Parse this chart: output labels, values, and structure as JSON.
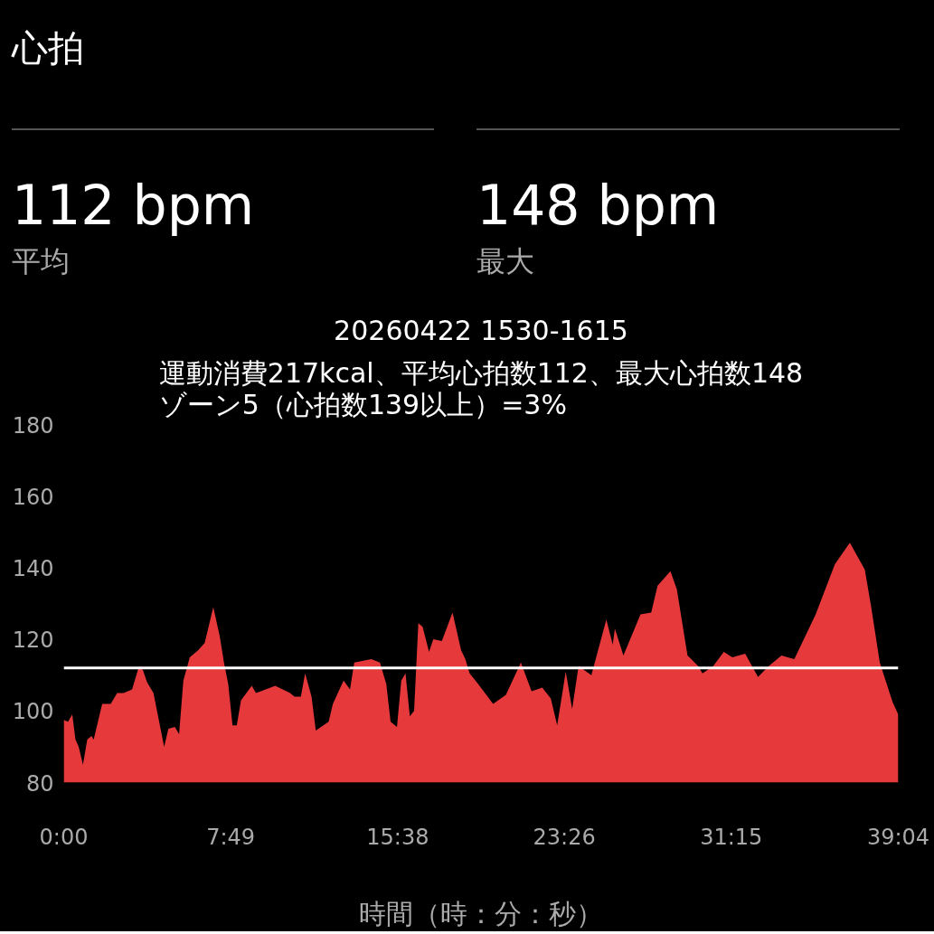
{
  "chart_data": {
    "type": "area",
    "title": "20260422 1530-1615",
    "subtitle": "運動消費217kcal、平均心拍数112、最大心拍数148\nゾーン5（心拍数139以上）=3%",
    "annotations": [
      "心拍",
      "112 bpm",
      "平均",
      "148 bpm",
      "最大"
    ],
    "xlabel": "時間（時：分：秒）",
    "x": [
      0,
      0.2,
      0.4,
      0.55,
      0.7,
      0.9,
      1.1,
      1.3,
      1.4,
      1.8,
      2.2,
      2.5,
      2.8,
      3.2,
      3.5,
      3.7,
      3.9,
      4.2,
      4.4,
      4.7,
      4.9,
      5.2,
      5.4,
      5.6,
      5.9,
      6.3,
      6.6,
      7.0,
      7.3,
      7.5,
      7.7,
      7.9,
      8.1,
      8.3,
      8.8,
      9.0,
      9.9,
      10.6,
      10.8,
      11.1,
      11.3,
      11.6,
      11.8,
      12.4,
      12.6,
      13.1,
      13.4,
      13.6,
      14.4,
      14.8,
      15.1,
      15.3,
      15.6,
      15.8,
      16.0,
      16.2,
      16.4,
      16.6,
      16.8,
      17.1,
      17.3,
      17.7,
      18.2,
      18.6,
      18.8,
      19.0,
      19.4,
      20.1,
      20.7,
      21.4,
      21.9,
      22.4,
      22.8,
      23.1,
      23.5,
      23.8,
      24.1,
      24.7,
      25.4,
      25.7,
      25.8,
      26.2,
      27.0,
      27.5,
      27.8,
      28.4,
      28.7,
      29.2,
      29.7,
      29.9,
      30.4,
      30.9,
      31.3,
      31.9,
      32.5,
      33.0,
      33.6,
      34.2,
      35.2,
      36.1,
      36.8,
      37.5,
      37.8,
      38.2,
      38.8,
      39.067
    ],
    "series": [
      {
        "color": "#e5393b",
        "values": [
          97.5,
          97,
          99,
          92,
          90,
          85,
          92,
          93,
          92,
          102,
          102,
          105,
          105,
          106,
          112,
          111.5,
          108,
          105,
          99,
          90,
          95,
          95.5,
          93.5,
          108.5,
          115,
          117,
          119,
          129,
          121,
          113.5,
          107.5,
          96,
          96,
          103,
          107,
          105,
          107,
          105,
          104,
          104,
          110.5,
          104,
          94.5,
          97,
          102,
          108.5,
          106,
          113.5,
          114.5,
          113.5,
          107.5,
          97,
          95.5,
          108.5,
          110.5,
          98.5,
          100,
          124.5,
          123.5,
          116.5,
          120,
          119.5,
          127.5,
          117,
          114.5,
          110.5,
          107.5,
          102,
          104.5,
          113.5,
          105.5,
          106.5,
          103.5,
          96,
          111,
          100.5,
          112.5,
          110,
          125.5,
          118.5,
          123,
          115.5,
          127,
          127.5,
          135,
          139,
          134,
          115.5,
          112.5,
          110.5,
          112.5,
          116.5,
          115,
          116,
          109.5,
          112.5,
          115.5,
          114.5,
          127,
          141,
          147,
          139.5,
          129,
          113.5,
          102.5,
          99
        ]
      }
    ],
    "xlim": [
      0,
      39.067
    ],
    "xticks": [
      {
        "value": 0,
        "label": "0:00"
      },
      {
        "value": 7.817,
        "label": "7:49"
      },
      {
        "value": 15.633,
        "label": "15:38"
      },
      {
        "value": 23.433,
        "label": "23:26"
      },
      {
        "value": 31.25,
        "label": "31:15"
      },
      {
        "value": 39.067,
        "label": "39:04"
      }
    ],
    "ylim": [
      80,
      180
    ],
    "yticks": [
      80,
      100,
      120,
      140,
      160,
      180
    ],
    "ref_lines": [
      {
        "axis": "y",
        "value": 112,
        "color": "#ffffff"
      }
    ]
  }
}
